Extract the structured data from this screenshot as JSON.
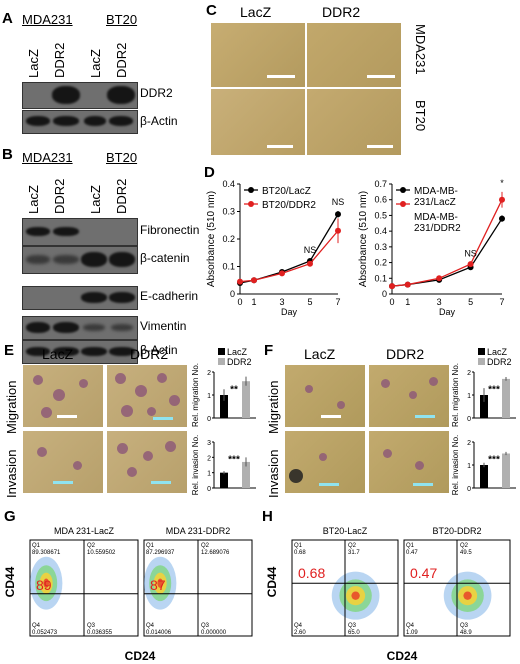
{
  "panels": {
    "A": {
      "label": "A",
      "groups": [
        "MDA231",
        "BT20"
      ],
      "lanes": [
        "LacZ",
        "DDR2",
        "LacZ",
        "DDR2"
      ],
      "rows": [
        "DDR2",
        "β-Actin"
      ]
    },
    "B": {
      "label": "B",
      "groups": [
        "MDA231",
        "BT20"
      ],
      "lanes": [
        "LacZ",
        "DDR2",
        "LacZ",
        "DDR2"
      ],
      "rows": [
        "Fibronectin",
        "β-catenin",
        "E-cadherin",
        "Vimentin",
        "β-Actin"
      ]
    },
    "C": {
      "label": "C",
      "cols": [
        "LacZ",
        "DDR2"
      ],
      "rows": [
        "MDA231",
        "BT20"
      ]
    },
    "D": {
      "label": "D"
    },
    "E": {
      "label": "E",
      "cols": [
        "LacZ",
        "DDR2"
      ],
      "rows": [
        "Migration",
        "Invasion"
      ],
      "legend": [
        "LacZ",
        "DDR2"
      ],
      "ylabel_top": "Rel. migration No.",
      "ylabel_bottom": "Rel. invasion No.",
      "sig_top": "**",
      "sig_bottom": "***"
    },
    "F": {
      "label": "F",
      "cols": [
        "LacZ",
        "DDR2"
      ],
      "rows": [
        "Migration",
        "Invasion"
      ],
      "legend": [
        "LacZ",
        "DDR2"
      ],
      "ylabel_top": "Rel. migration No.",
      "ylabel_bottom": "Rel. invasion No.",
      "sig_top": "***",
      "sig_bottom": "***"
    },
    "G": {
      "label": "G",
      "ylabel": "CD44",
      "xlabel": "CD24",
      "plots": [
        {
          "title": "MDA 231-LacZ",
          "big": "89",
          "q1": "Q1",
          "q1v": "89.308671",
          "q2": "Q2",
          "q2v": "10.559502",
          "q3": "Q3",
          "q3v": "0.036355",
          "q4": "Q4",
          "q4v": "0.052473"
        },
        {
          "title": "MDA 231-DDR2",
          "big": "87",
          "q1": "Q1",
          "q1v": "87.296937",
          "q2": "Q2",
          "q2v": "12.689076",
          "q3": "Q3",
          "q3v": "0.000000",
          "q4": "Q4",
          "q4v": "0.014006"
        }
      ]
    },
    "H": {
      "label": "H",
      "ylabel": "CD44",
      "xlabel": "CD24",
      "plots": [
        {
          "title": "BT20-LacZ",
          "big": "0.68",
          "q1": "Q1",
          "q1v": "0.68",
          "q2": "Q2",
          "q2v": "31.7",
          "q3": "Q3",
          "q3v": "65.0",
          "q4": "Q4",
          "q4v": "2.60"
        },
        {
          "title": "BT20-DDR2",
          "big": "0.47",
          "q1": "Q1",
          "q1v": "0.47",
          "q2": "Q2",
          "q2v": "49.5",
          "q3": "Q3",
          "q3v": "48.9",
          "q4": "Q4",
          "q4v": "1.09"
        }
      ]
    }
  },
  "chart_data": [
    {
      "type": "line",
      "x": [
        0,
        1,
        3,
        5,
        7
      ],
      "xlabel": "Day",
      "ylabel": "Absorbance (510 nm)",
      "ylim": [
        0,
        0.4
      ],
      "yticks": [
        "0",
        "0.1",
        "0.2",
        "0.3",
        "0.4"
      ],
      "legend_placement": "top-left",
      "series": [
        {
          "name": "BT20/LacZ",
          "color": "#000000",
          "values": [
            0.04,
            0.05,
            0.08,
            0.12,
            0.29
          ],
          "err": [
            0.003,
            0.003,
            0.005,
            0.008,
            0.012
          ]
        },
        {
          "name": "BT20/DDR2",
          "color": "#e02020",
          "values": [
            0.045,
            0.05,
            0.075,
            0.11,
            0.23
          ],
          "err": [
            0.003,
            0.003,
            0.005,
            0.008,
            0.045
          ]
        }
      ],
      "annotations": [
        {
          "x": 5,
          "text": "NS"
        },
        {
          "x": 7,
          "text": "NS"
        }
      ]
    },
    {
      "type": "line",
      "x": [
        0,
        1,
        3,
        5,
        7
      ],
      "xlabel": "Day",
      "ylabel": "Absorbance (510 nm)",
      "ylim": [
        0,
        0.7
      ],
      "yticks": [
        "0",
        "0.1",
        "0.2",
        "0.3",
        "0.4",
        "0.5",
        "0.6",
        "0.7"
      ],
      "legend_placement": "top-left",
      "series": [
        {
          "name": "MDA-MB-231/LacZ",
          "color": "#000000",
          "values": [
            0.05,
            0.06,
            0.09,
            0.17,
            0.48
          ],
          "err": [
            0.003,
            0.003,
            0.005,
            0.01,
            0.02
          ]
        },
        {
          "name": "MDA-MB-231/DDR2",
          "color": "#e02020",
          "values": [
            0.05,
            0.06,
            0.1,
            0.19,
            0.6
          ],
          "err": [
            0.003,
            0.003,
            0.005,
            0.01,
            0.05
          ]
        }
      ],
      "annotations": [
        {
          "x": 5,
          "text": "NS"
        },
        {
          "x": 7,
          "text": "*"
        }
      ]
    },
    {
      "type": "bar",
      "panel": "E-migration",
      "categories": [
        "LacZ",
        "DDR2"
      ],
      "values": [
        1.0,
        1.6
      ],
      "err": [
        0.25,
        0.2
      ],
      "ylim": [
        0,
        2
      ],
      "yticks": [
        "0",
        "1",
        "2"
      ]
    },
    {
      "type": "bar",
      "panel": "E-invasion",
      "categories": [
        "LacZ",
        "DDR2"
      ],
      "values": [
        1.0,
        1.7
      ],
      "err": [
        0.1,
        0.3
      ],
      "ylim": [
        0,
        3
      ],
      "yticks": [
        "0",
        "1",
        "2",
        "3"
      ]
    },
    {
      "type": "bar",
      "panel": "F-migration",
      "categories": [
        "LacZ",
        "DDR2"
      ],
      "values": [
        1.0,
        1.7
      ],
      "err": [
        0.3,
        0.08
      ],
      "ylim": [
        0,
        2
      ],
      "yticks": [
        "0",
        "1",
        "2"
      ]
    },
    {
      "type": "bar",
      "panel": "F-invasion",
      "categories": [
        "LacZ",
        "DDR2"
      ],
      "values": [
        1.0,
        1.5
      ],
      "err": [
        0.1,
        0.07
      ],
      "ylim": [
        0,
        2
      ],
      "yticks": [
        "0",
        "1",
        "2"
      ]
    }
  ]
}
